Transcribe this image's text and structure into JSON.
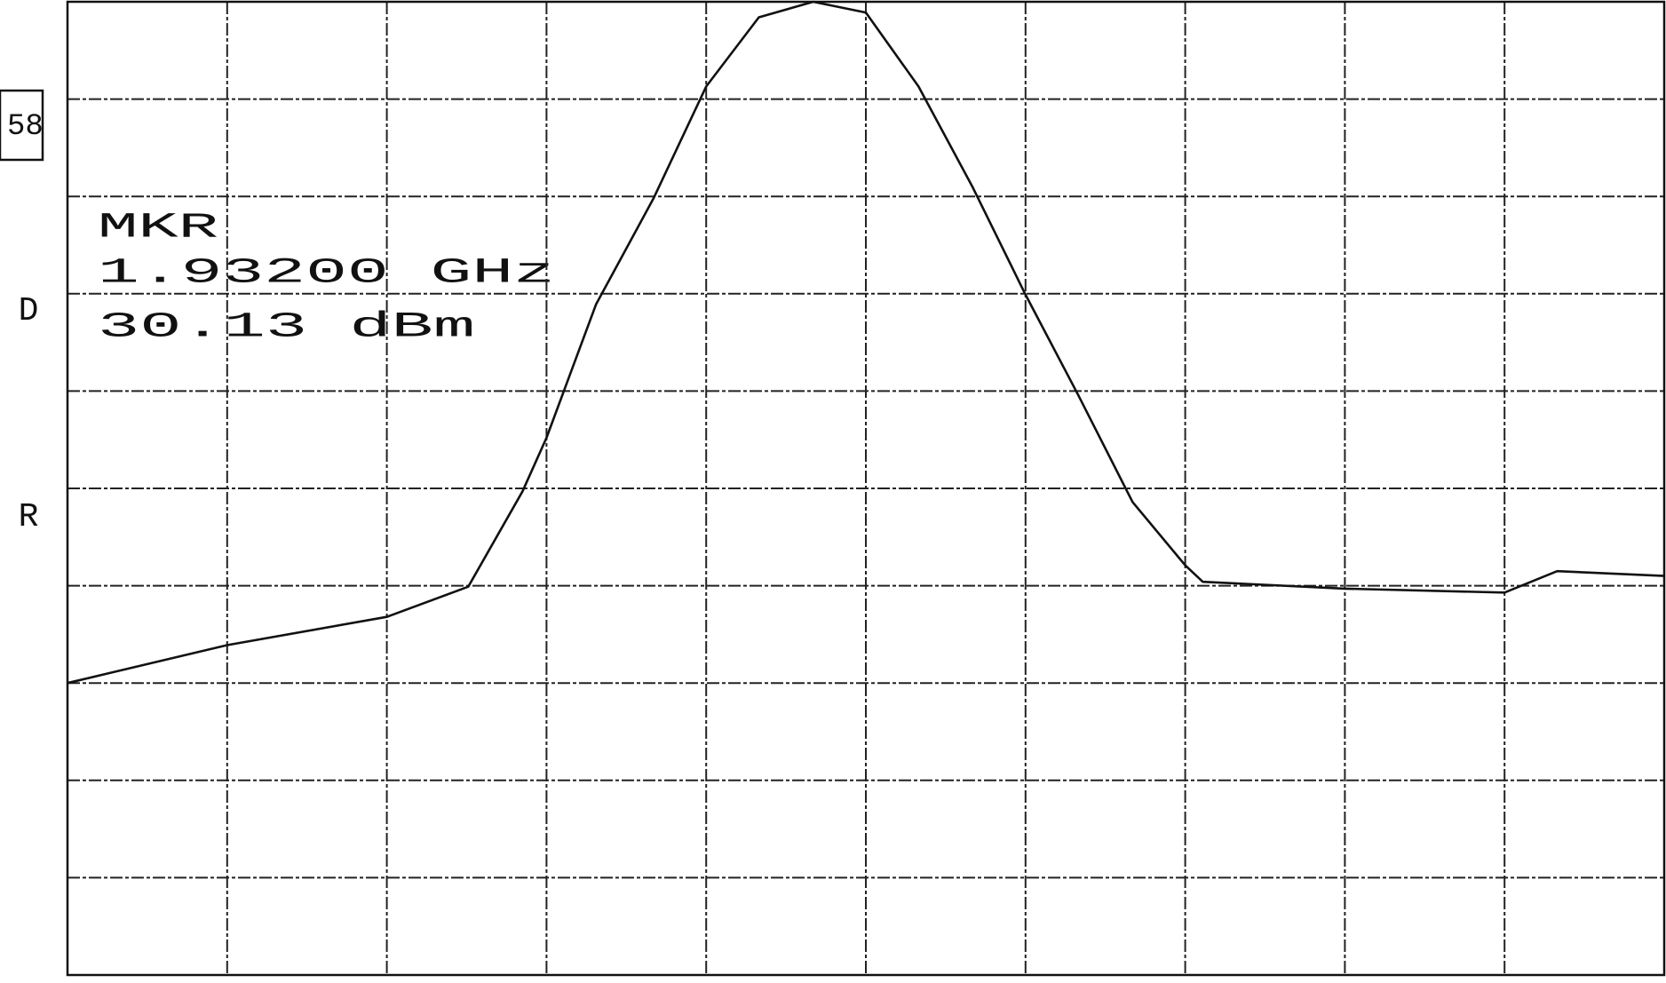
{
  "chart_data": {
    "type": "line",
    "x": [
      0,
      1,
      2,
      2.51,
      2.85,
      3,
      3.31,
      3.67,
      4,
      4.33,
      4.67,
      5,
      5.33,
      5.67,
      6,
      6.33,
      6.67,
      7,
      7.11,
      8,
      9,
      9.33,
      10
    ],
    "series": [
      {
        "color": "#111111",
        "values": [
          3.0,
          3.39,
          3.68,
          3.99,
          4.97,
          5.52,
          6.89,
          7.98,
          9.13,
          9.84,
          10,
          9.89,
          9.13,
          8.09,
          6.99,
          5.96,
          4.86,
          4.21,
          4.04,
          3.97,
          3.93,
          4.15,
          4.1
        ]
      }
    ],
    "xlim": [
      0,
      10
    ],
    "ylim": [
      0,
      10
    ],
    "xticks": [
      0,
      1,
      2,
      3,
      4,
      5,
      6,
      7,
      8,
      9,
      10
    ],
    "yticks": [
      0,
      1,
      2,
      3,
      4,
      5,
      6,
      7,
      8,
      9,
      10
    ],
    "grid": true,
    "marker": {
      "label": "MKR",
      "frequency": "1.93200 GHz",
      "level": "30.13 dBm"
    },
    "side_labels": [
      "D",
      "R"
    ],
    "box_label": "58"
  }
}
